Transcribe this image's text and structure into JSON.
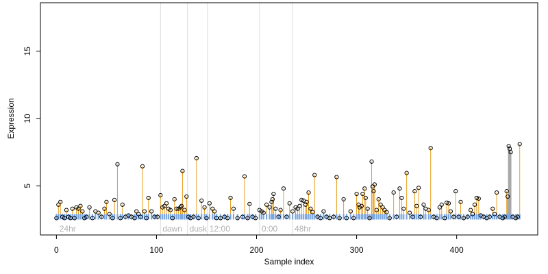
{
  "chart_data": {
    "type": "scatter",
    "title": "",
    "xlabel": "Sample index",
    "ylabel": "Expression",
    "xlim": [
      -16,
      481
    ],
    "ylim": [
      1.35,
      18.6
    ],
    "x_ticks": [
      0,
      100,
      200,
      300,
      400
    ],
    "y_ticks": [
      5,
      10,
      15
    ],
    "grid": false,
    "legend": "none",
    "colors": {
      "frame": "#000000",
      "baseline_bar": "#7ba7e0",
      "stem": "#e8a020",
      "highlight_stem": "#a8a8a8",
      "point_stroke": "#000000",
      "divider": "#dcdcdc",
      "annotation": "#b0b0b0"
    },
    "dividers": [
      104,
      131,
      151,
      203,
      236
    ],
    "annotations": [
      {
        "x": 3,
        "text": "24hr"
      },
      {
        "x": 106,
        "text": "dawn"
      },
      {
        "x": 133,
        "text": "dusk"
      },
      {
        "x": 153,
        "text": "12:00"
      },
      {
        "x": 205,
        "text": "0:00"
      },
      {
        "x": 238,
        "text": "48hr"
      }
    ],
    "baseline": 2.7,
    "highlight_x": [
      451,
      452,
      453,
      454
    ],
    "points": [
      [
        0,
        2.6
      ],
      [
        2,
        3.6
      ],
      [
        4,
        3.8
      ],
      [
        6,
        2.7
      ],
      [
        8,
        2.6
      ],
      [
        10,
        3.2
      ],
      [
        12,
        2.7
      ],
      [
        14,
        2.6
      ],
      [
        16,
        3.3
      ],
      [
        18,
        2.6
      ],
      [
        20,
        3.4
      ],
      [
        22,
        3.3
      ],
      [
        24,
        3.5
      ],
      [
        26,
        3.1
      ],
      [
        28,
        2.6
      ],
      [
        30,
        2.7
      ],
      [
        33,
        3.4
      ],
      [
        36,
        2.6
      ],
      [
        39,
        3.1
      ],
      [
        42,
        3.0
      ],
      [
        45,
        2.7
      ],
      [
        48,
        3.3
      ],
      [
        50,
        3.8
      ],
      [
        53,
        2.9
      ],
      [
        56,
        2.6
      ],
      [
        58,
        3.95
      ],
      [
        61,
        6.6
      ],
      [
        64,
        2.6
      ],
      [
        66,
        3.6
      ],
      [
        69,
        2.7
      ],
      [
        72,
        2.8
      ],
      [
        75,
        2.7
      ],
      [
        78,
        2.6
      ],
      [
        80,
        3.1
      ],
      [
        82,
        2.9
      ],
      [
        84,
        2.7
      ],
      [
        86,
        6.45
      ],
      [
        88,
        3.1
      ],
      [
        90,
        2.6
      ],
      [
        92,
        4.1
      ],
      [
        95,
        3.1
      ],
      [
        98,
        2.7
      ],
      [
        101,
        2.7
      ],
      [
        104,
        4.3
      ],
      [
        106,
        3.4
      ],
      [
        108,
        3.5
      ],
      [
        110,
        3.7
      ],
      [
        112,
        3.3
      ],
      [
        114,
        3.2
      ],
      [
        116,
        2.6
      ],
      [
        118,
        4.0
      ],
      [
        120,
        3.3
      ],
      [
        122,
        3.3
      ],
      [
        124,
        3.4
      ],
      [
        125,
        3.5
      ],
      [
        126,
        6.1
      ],
      [
        128,
        3.2
      ],
      [
        130,
        4.2
      ],
      [
        132,
        2.7
      ],
      [
        134,
        2.6
      ],
      [
        137,
        2.7
      ],
      [
        140,
        7.05
      ],
      [
        142,
        2.6
      ],
      [
        145,
        3.9
      ],
      [
        148,
        3.4
      ],
      [
        150,
        2.6
      ],
      [
        153,
        3.7
      ],
      [
        156,
        3.3
      ],
      [
        158,
        3.1
      ],
      [
        160,
        2.6
      ],
      [
        164,
        2.6
      ],
      [
        168,
        2.7
      ],
      [
        171,
        2.6
      ],
      [
        174,
        4.1
      ],
      [
        177,
        3.3
      ],
      [
        181,
        2.6
      ],
      [
        186,
        2.7
      ],
      [
        188,
        5.7
      ],
      [
        191,
        2.6
      ],
      [
        193,
        3.65
      ],
      [
        196,
        2.7
      ],
      [
        199,
        2.6
      ],
      [
        203,
        3.2
      ],
      [
        205,
        3.1
      ],
      [
        207,
        3.0
      ],
      [
        210,
        3.6
      ],
      [
        213,
        3.4
      ],
      [
        215,
        3.8
      ],
      [
        216,
        4.0
      ],
      [
        217,
        4.4
      ],
      [
        219,
        3.3
      ],
      [
        222,
        2.7
      ],
      [
        224,
        3.2
      ],
      [
        227,
        4.8
      ],
      [
        230,
        2.7
      ],
      [
        233,
        3.7
      ],
      [
        236,
        3.1
      ],
      [
        239,
        3.4
      ],
      [
        241,
        3.3
      ],
      [
        243,
        3.5
      ],
      [
        245,
        3.95
      ],
      [
        247,
        3.9
      ],
      [
        249,
        3.6
      ],
      [
        250,
        3.8
      ],
      [
        252,
        4.5
      ],
      [
        254,
        3.3
      ],
      [
        256,
        3.05
      ],
      [
        258,
        5.8
      ],
      [
        261,
        2.7
      ],
      [
        264,
        2.6
      ],
      [
        267,
        3.1
      ],
      [
        270,
        2.7
      ],
      [
        273,
        2.6
      ],
      [
        277,
        2.7
      ],
      [
        280,
        5.65
      ],
      [
        283,
        2.6
      ],
      [
        287,
        4.0
      ],
      [
        290,
        2.6
      ],
      [
        294,
        3.1
      ],
      [
        297,
        2.6
      ],
      [
        300,
        4.4
      ],
      [
        302,
        3.6
      ],
      [
        303,
        3.4
      ],
      [
        305,
        3.5
      ],
      [
        306,
        4.4
      ],
      [
        308,
        4.8
      ],
      [
        309,
        4.1
      ],
      [
        311,
        3.3
      ],
      [
        313,
        2.6
      ],
      [
        315,
        6.8
      ],
      [
        316,
        4.95
      ],
      [
        317,
        4.6
      ],
      [
        318,
        5.1
      ],
      [
        320,
        3.2
      ],
      [
        322,
        4.0
      ],
      [
        324,
        3.6
      ],
      [
        326,
        3.4
      ],
      [
        328,
        3.2
      ],
      [
        330,
        3.05
      ],
      [
        333,
        2.6
      ],
      [
        337,
        4.5
      ],
      [
        340,
        2.7
      ],
      [
        343,
        4.8
      ],
      [
        345,
        4.1
      ],
      [
        347,
        3.3
      ],
      [
        350,
        5.95
      ],
      [
        353,
        3.0
      ],
      [
        356,
        2.7
      ],
      [
        358,
        4.6
      ],
      [
        360,
        3.5
      ],
      [
        362,
        4.85
      ],
      [
        364,
        2.7
      ],
      [
        367,
        3.6
      ],
      [
        369,
        3.3
      ],
      [
        372,
        3.2
      ],
      [
        374,
        7.8
      ],
      [
        377,
        2.7
      ],
      [
        380,
        2.6
      ],
      [
        383,
        3.4
      ],
      [
        385,
        3.6
      ],
      [
        388,
        2.6
      ],
      [
        390,
        3.75
      ],
      [
        392,
        3.7
      ],
      [
        394,
        3.1
      ],
      [
        397,
        2.7
      ],
      [
        399,
        4.6
      ],
      [
        402,
        2.7
      ],
      [
        404,
        3.8
      ],
      [
        407,
        2.6
      ],
      [
        411,
        2.7
      ],
      [
        414,
        3.2
      ],
      [
        416,
        2.9
      ],
      [
        418,
        3.6
      ],
      [
        420,
        4.1
      ],
      [
        422,
        4.05
      ],
      [
        424,
        2.8
      ],
      [
        427,
        2.7
      ],
      [
        430,
        2.6
      ],
      [
        433,
        2.7
      ],
      [
        436,
        3.3
      ],
      [
        438,
        2.9
      ],
      [
        440,
        4.5
      ],
      [
        443,
        2.7
      ],
      [
        446,
        2.6
      ],
      [
        448,
        2.7
      ],
      [
        450,
        4.6
      ],
      [
        451,
        4.2
      ],
      [
        452,
        7.95
      ],
      [
        453,
        7.75
      ],
      [
        454,
        7.5
      ],
      [
        456,
        2.7
      ],
      [
        459,
        2.6
      ],
      [
        461,
        2.7
      ],
      [
        463,
        8.1
      ]
    ]
  }
}
